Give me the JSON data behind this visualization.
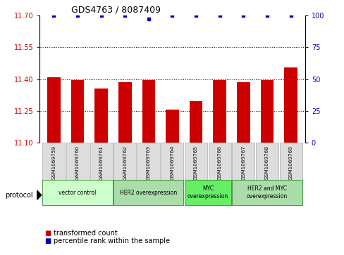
{
  "title": "GDS4763 / 8087409",
  "samples": [
    "GSM1069759",
    "GSM1069760",
    "GSM1069761",
    "GSM1069762",
    "GSM1069763",
    "GSM1069764",
    "GSM1069765",
    "GSM1069766",
    "GSM1069767",
    "GSM1069768",
    "GSM1069769"
  ],
  "bar_values": [
    11.41,
    11.395,
    11.355,
    11.385,
    11.395,
    11.255,
    11.295,
    11.395,
    11.385,
    11.395,
    11.455
  ],
  "percentile_values": [
    100,
    100,
    100,
    100,
    97,
    100,
    100,
    100,
    100,
    100,
    100
  ],
  "bar_color": "#cc0000",
  "dot_color": "#0000bb",
  "ylim_left": [
    11.1,
    11.7
  ],
  "ylim_right": [
    0,
    100
  ],
  "yticks_left": [
    11.1,
    11.25,
    11.4,
    11.55,
    11.7
  ],
  "yticks_right": [
    0,
    25,
    50,
    75,
    100
  ],
  "grid_lines": [
    11.25,
    11.4,
    11.55
  ],
  "protocol_groups": [
    {
      "label": "vector control",
      "start": 0,
      "end": 2,
      "color": "#ccffcc"
    },
    {
      "label": "HER2 overexpression",
      "start": 3,
      "end": 5,
      "color": "#aaddaa"
    },
    {
      "label": "MYC\noverexpression",
      "start": 6,
      "end": 7,
      "color": "#66ee66"
    },
    {
      "label": "HER2 and MYC\noverexpression",
      "start": 8,
      "end": 10,
      "color": "#aaddaa"
    }
  ],
  "bar_width": 0.55,
  "sample_box_color": "#dddddd",
  "sample_box_border": "#aaaaaa",
  "bg_color": "#ffffff"
}
